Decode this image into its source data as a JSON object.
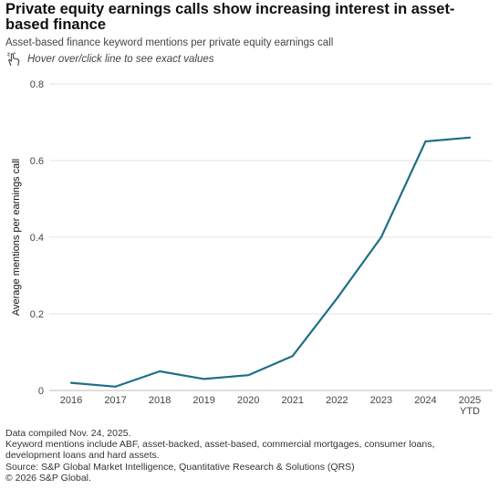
{
  "header": {
    "title": "Private equity earnings calls show increasing interest in asset-based finance",
    "subtitle": "Asset-based finance keyword mentions per private equity earnings call",
    "hint": "Hover over/click line to see exact values",
    "hint_icon": "hand-pointer-icon"
  },
  "chart_data": {
    "type": "line",
    "categories": [
      "2016",
      "2017",
      "2018",
      "2019",
      "2020",
      "2021",
      "2022",
      "2023",
      "2024",
      "2025 YTD"
    ],
    "tick_lines": [
      [
        "2016"
      ],
      [
        "2017"
      ],
      [
        "2018"
      ],
      [
        "2019"
      ],
      [
        "2020"
      ],
      [
        "2021"
      ],
      [
        "2022"
      ],
      [
        "2023"
      ],
      [
        "2024"
      ],
      [
        "2025",
        "YTD"
      ]
    ],
    "series": [
      {
        "values": [
          0.02,
          0.01,
          0.05,
          0.03,
          0.04,
          0.09,
          0.24,
          0.4,
          0.65,
          0.66
        ],
        "color": "#1f6f86"
      }
    ],
    "ylabel": "Average mentions per earnings call",
    "xlabel": "",
    "ylim": [
      0,
      0.8
    ],
    "yticks": [
      0,
      0.2,
      0.4,
      0.6,
      0.8
    ],
    "ytick_labels": [
      "0",
      "0.2",
      "0.4",
      "0.6",
      "0.8"
    ],
    "grid": true
  },
  "footnotes": [
    "Data compiled Nov. 24, 2025.",
    "Keyword mentions include ABF, asset-backed, asset-based, commercial mortgages, consumer loans,",
    "development loans and hard assets.",
    "Source: S&P Global Market Intelligence, Quantitative Research & Solutions (QRS)",
    "© 2026 S&P Global."
  ]
}
